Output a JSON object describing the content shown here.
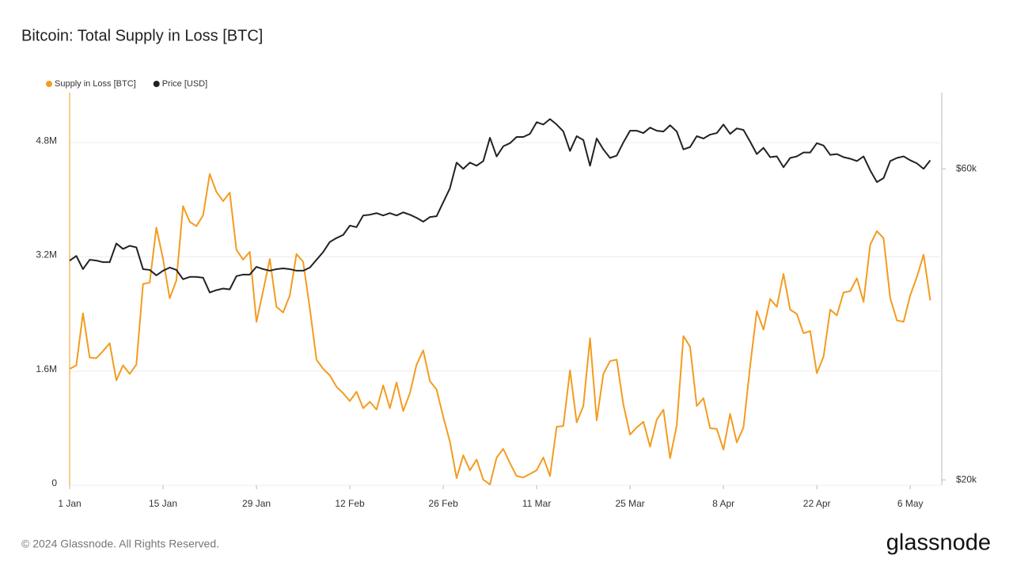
{
  "chart_data": {
    "type": "line",
    "title": "Bitcoin: Total Supply in Loss [BTC]",
    "x": [
      "1 Jan",
      "2 Jan",
      "3 Jan",
      "4 Jan",
      "5 Jan",
      "6 Jan",
      "7 Jan",
      "8 Jan",
      "9 Jan",
      "10 Jan",
      "11 Jan",
      "12 Jan",
      "13 Jan",
      "14 Jan",
      "15 Jan",
      "16 Jan",
      "17 Jan",
      "18 Jan",
      "19 Jan",
      "20 Jan",
      "21 Jan",
      "22 Jan",
      "23 Jan",
      "24 Jan",
      "25 Jan",
      "26 Jan",
      "27 Jan",
      "28 Jan",
      "29 Jan",
      "30 Jan",
      "31 Jan",
      "1 Feb",
      "2 Feb",
      "3 Feb",
      "4 Feb",
      "5 Feb",
      "6 Feb",
      "7 Feb",
      "8 Feb",
      "9 Feb",
      "10 Feb",
      "11 Feb",
      "12 Feb",
      "13 Feb",
      "14 Feb",
      "15 Feb",
      "16 Feb",
      "17 Feb",
      "18 Feb",
      "19 Feb",
      "20 Feb",
      "21 Feb",
      "22 Feb",
      "23 Feb",
      "24 Feb",
      "25 Feb",
      "26 Feb",
      "27 Feb",
      "28 Feb",
      "29 Feb",
      "1 Mar",
      "2 Mar",
      "3 Mar",
      "4 Mar",
      "5 Mar",
      "6 Mar",
      "7 Mar",
      "8 Mar",
      "9 Mar",
      "10 Mar",
      "11 Mar",
      "12 Mar",
      "13 Mar",
      "14 Mar",
      "15 Mar",
      "16 Mar",
      "17 Mar",
      "18 Mar",
      "19 Mar",
      "20 Mar",
      "21 Mar",
      "22 Mar",
      "23 Mar",
      "24 Mar",
      "25 Mar",
      "26 Mar",
      "27 Mar",
      "28 Mar",
      "29 Mar",
      "30 Mar",
      "31 Mar",
      "1 Apr",
      "2 Apr",
      "3 Apr",
      "4 Apr",
      "5 Apr",
      "6 Apr",
      "7 Apr",
      "8 Apr",
      "9 Apr",
      "10 Apr",
      "11 Apr",
      "12 Apr",
      "13 Apr",
      "14 Apr",
      "15 Apr",
      "16 Apr",
      "17 Apr",
      "18 Apr",
      "19 Apr",
      "20 Apr",
      "21 Apr",
      "22 Apr",
      "23 Apr",
      "24 Apr",
      "25 Apr",
      "26 Apr",
      "27 Apr",
      "28 Apr",
      "29 Apr",
      "30 Apr",
      "1 May",
      "2 May",
      "3 May",
      "4 May",
      "5 May",
      "6 May",
      "7 May",
      "8 May",
      "9 May"
    ],
    "xticks": [
      "1 Jan",
      "15 Jan",
      "29 Jan",
      "12 Feb",
      "26 Feb",
      "11 Mar",
      "25 Mar",
      "8 Apr",
      "22 Apr",
      "6 May"
    ],
    "series": [
      {
        "name": "Supply in Loss [BTC]",
        "color": "#f39c1f",
        "values": [
          1630000,
          1680000,
          2410000,
          1790000,
          1780000,
          1880000,
          1990000,
          1470000,
          1680000,
          1560000,
          1690000,
          2820000,
          2840000,
          3610000,
          3170000,
          2620000,
          2870000,
          3910000,
          3690000,
          3630000,
          3780000,
          4360000,
          4110000,
          3980000,
          4100000,
          3300000,
          3160000,
          3270000,
          2290000,
          2720000,
          3170000,
          2500000,
          2420000,
          2660000,
          3240000,
          3130000,
          2480000,
          1760000,
          1630000,
          1540000,
          1380000,
          1290000,
          1180000,
          1310000,
          1080000,
          1170000,
          1060000,
          1400000,
          1080000,
          1440000,
          1040000,
          1290000,
          1690000,
          1890000,
          1460000,
          1340000,
          960000,
          610000,
          100000,
          420000,
          210000,
          360000,
          80000,
          10000,
          390000,
          510000,
          310000,
          130000,
          110000,
          160000,
          210000,
          390000,
          130000,
          820000,
          830000,
          1610000,
          880000,
          1110000,
          2060000,
          910000,
          1560000,
          1740000,
          1760000,
          1130000,
          710000,
          810000,
          890000,
          540000,
          920000,
          1060000,
          380000,
          840000,
          2090000,
          1940000,
          1110000,
          1220000,
          800000,
          790000,
          500000,
          1000000,
          600000,
          810000,
          1670000,
          2440000,
          2180000,
          2610000,
          2500000,
          2960000,
          2460000,
          2400000,
          2130000,
          2160000,
          1570000,
          1800000,
          2460000,
          2380000,
          2700000,
          2720000,
          2900000,
          2570000,
          3370000,
          3560000,
          3460000,
          2620000,
          2310000,
          2290000,
          2660000,
          2920000,
          3230000,
          2590000
        ]
      },
      {
        "name": "Price [USD]",
        "color": "#222222",
        "axis": "y2",
        "values": [
          48200,
          48800,
          47100,
          48300,
          48200,
          48000,
          48000,
          50400,
          49700,
          50100,
          49900,
          47100,
          47000,
          46300,
          46900,
          47300,
          47000,
          45800,
          46100,
          46100,
          46000,
          44100,
          44400,
          44600,
          44500,
          46200,
          46400,
          46400,
          47400,
          47100,
          46900,
          47100,
          47200,
          47100,
          46900,
          46900,
          47300,
          48300,
          49300,
          50600,
          51100,
          51500,
          52700,
          52500,
          54000,
          54100,
          54300,
          54000,
          54300,
          54000,
          54400,
          54100,
          53700,
          53200,
          53800,
          53900,
          55700,
          57500,
          60800,
          60000,
          60800,
          60400,
          61000,
          64000,
          61600,
          62900,
          63300,
          64100,
          64100,
          64500,
          66000,
          65700,
          66400,
          65700,
          64800,
          62300,
          64200,
          63700,
          60400,
          63900,
          62500,
          61400,
          61700,
          63400,
          64900,
          64900,
          64600,
          65300,
          64900,
          64800,
          65600,
          64800,
          62500,
          62800,
          64200,
          63900,
          64400,
          64600,
          65700,
          64500,
          65200,
          65000,
          63500,
          61900,
          62700,
          61500,
          61600,
          60200,
          61400,
          61600,
          62100,
          62100,
          63300,
          63000,
          61800,
          61900,
          61500,
          61300,
          61000,
          61600,
          59800,
          58300,
          58800,
          61000,
          61400,
          61600,
          61100,
          60700,
          60000,
          61100
        ]
      }
    ],
    "ylim": [
      0,
      5500000
    ],
    "yticks": [
      0,
      {
        "value": 1600000,
        "label": "1.6M"
      },
      {
        "value": 3200000,
        "label": "3.2M"
      },
      {
        "value": 4800000,
        "label": "4.8M"
      }
    ],
    "y2lim": [
      19300,
      69800
    ],
    "y2ticks": [
      {
        "value": 20000,
        "label": "$20k"
      },
      {
        "value": 60000,
        "label": "$60k"
      }
    ],
    "grid": true,
    "legend": "top-left"
  },
  "footer": {
    "copyright": "© 2024 Glassnode. All Rights Reserved.",
    "brand": "glassnode"
  }
}
